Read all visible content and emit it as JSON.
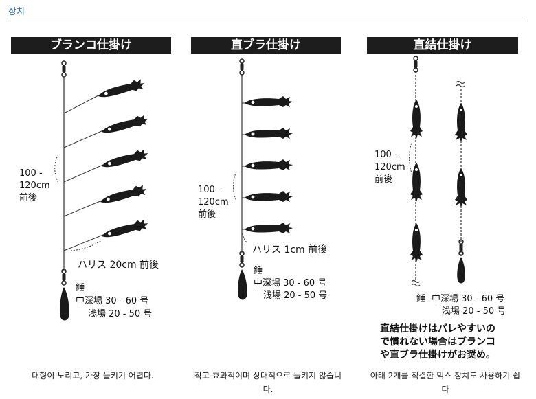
{
  "header": {
    "title": "장치"
  },
  "panels": [
    {
      "title": "ブランコ仕掛け",
      "length_label": [
        "100 -",
        "120cm",
        "前後"
      ],
      "harisu_label": "ハリス 20cm 前後",
      "sinker_label": "錘",
      "depth_deep": "中深場 30 - 60 号",
      "depth_shallow": "浅場 20 - 50 号",
      "caption": "대형이 노리고, 가장 들키기 어렵다."
    },
    {
      "title": "直ブラ仕掛け",
      "length_label": [
        "100 -",
        "120cm",
        "前後"
      ],
      "harisu_label": "ハリス 1cm 前後",
      "sinker_label": "錘",
      "depth_deep": "中深場 30 - 60 号",
      "depth_shallow": "浅場 20 - 50 号",
      "caption": [
        "작고 효과적이며 상대적으로 들키지 않습니",
        "다."
      ]
    },
    {
      "title": "直結仕掛け",
      "length_label": [
        "100 -",
        "120cm",
        "前後"
      ],
      "sinker_label": "錘",
      "depth_deep": "中深場 30 - 60 号",
      "depth_shallow": "浅場 20 - 50 号",
      "note": [
        "直結仕掛けはバレやすいの",
        "で慣れない場合はブランコ",
        "や直ブラ仕掛けがお奨め。"
      ],
      "caption": [
        "아래 2개를 직결한 믹스 장치도 사용하기 쉽",
        "다"
      ]
    }
  ]
}
